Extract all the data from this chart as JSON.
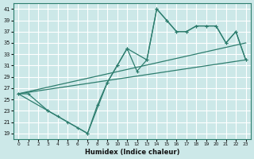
{
  "xlabel": "Humidex (Indice chaleur)",
  "xlim": [
    -0.5,
    23.5
  ],
  "ylim": [
    18,
    42
  ],
  "yticks": [
    19,
    21,
    23,
    25,
    27,
    29,
    31,
    33,
    35,
    37,
    39,
    41
  ],
  "xticks": [
    0,
    1,
    2,
    3,
    4,
    5,
    6,
    7,
    8,
    9,
    10,
    11,
    12,
    13,
    14,
    15,
    16,
    17,
    18,
    19,
    20,
    21,
    22,
    23
  ],
  "bg_color": "#cce8e8",
  "grid_color": "#ffffff",
  "line_color": "#2d7d6e",
  "line1_x": [
    0,
    1,
    3,
    4,
    5,
    6,
    7,
    8,
    9,
    10,
    11,
    12,
    13,
    14,
    15,
    16,
    17,
    18,
    19,
    20,
    21,
    22,
    23
  ],
  "line1_y": [
    26,
    26,
    23,
    22,
    21,
    20,
    19,
    24,
    28,
    31,
    34,
    30,
    32,
    41,
    39,
    37,
    37,
    38,
    38,
    38,
    35,
    37,
    32
  ],
  "line2_x": [
    0,
    3,
    7,
    9,
    10,
    11,
    13,
    14,
    15,
    16,
    17,
    18,
    19,
    20,
    21,
    22,
    23
  ],
  "line2_y": [
    26,
    23,
    19,
    28,
    31,
    34,
    32,
    41,
    39,
    37,
    37,
    38,
    38,
    38,
    35,
    37,
    32
  ],
  "line3_x": [
    0,
    23
  ],
  "line3_y": [
    26,
    32
  ],
  "line4_x": [
    0,
    23
  ],
  "line4_y": [
    26,
    35
  ]
}
